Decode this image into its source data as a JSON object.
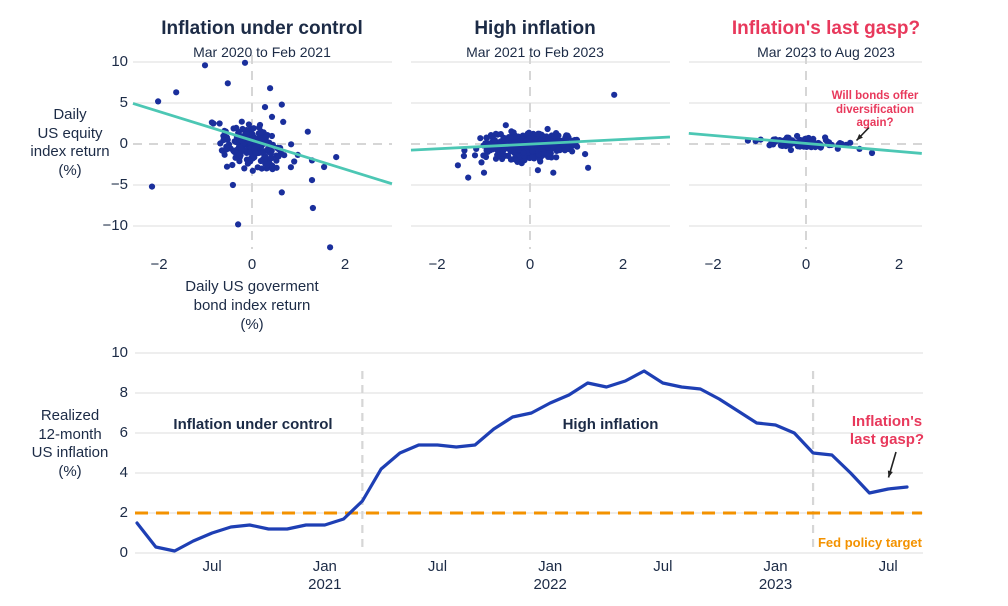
{
  "colors": {
    "background": "#ffffff",
    "navy": "#1c2b46",
    "red": "#e8395c",
    "dot_blue": "#1a2f9c",
    "line_blue": "#1e3fb4",
    "teal": "#4cc7b4",
    "orange": "#f39200",
    "grid": "#e9e9e9",
    "grid_dash": "#d6d6d6",
    "arrow": "#222222"
  },
  "chart_data": {
    "scatter_row": {
      "type": "scatter",
      "y_axis_label": "Daily\nUS equity\nindex return\n(%)",
      "x_axis_label": "Daily US goverment\nbond index return\n(%)",
      "y_tick_values": [
        10,
        5,
        0,
        -5,
        -10
      ],
      "y_tick_labels": [
        "10",
        "5",
        "0",
        "−5",
        "−10"
      ],
      "x_tick_values": [
        -2,
        0,
        2
      ],
      "x_tick_labels": [
        "−2",
        "0",
        "2"
      ],
      "ylim": [
        -12.8,
        10.5
      ],
      "panels": [
        {
          "title": "Inflation under control",
          "subtitle": "Mar 2020 to Feb 2021",
          "trend": {
            "x1": -2.56,
            "y1": 4.95,
            "x2": 3.01,
            "y2": -4.85
          },
          "cloud": {
            "seed": 41,
            "n": 190,
            "cx": 0.04,
            "cy": -0.25,
            "sx": 0.34,
            "sy": 1.3,
            "slope": -1.35,
            "clip_x": [
              -1.05,
              1.15
            ],
            "clip_y": [
              -4.3,
              4.2
            ]
          },
          "extra_points": [
            [
              -1.01,
              9.6
            ],
            [
              -0.15,
              9.9
            ],
            [
              -0.52,
              7.4
            ],
            [
              0.39,
              6.8
            ],
            [
              -1.63,
              6.3
            ],
            [
              -2.02,
              5.2
            ],
            [
              0.64,
              4.8
            ],
            [
              0.28,
              4.5
            ],
            [
              0.43,
              3.3
            ],
            [
              0.67,
              2.7
            ],
            [
              1.2,
              1.5
            ],
            [
              1.81,
              -1.6
            ],
            [
              1.55,
              -2.8
            ],
            [
              1.29,
              -2.0
            ],
            [
              1.29,
              -4.4
            ],
            [
              0.64,
              -5.9
            ],
            [
              -0.41,
              -5.0
            ],
            [
              -2.15,
              -5.2
            ],
            [
              1.31,
              -7.8
            ],
            [
              -0.3,
              -9.8
            ],
            [
              1.68,
              -12.6
            ]
          ]
        },
        {
          "title": "High inflation",
          "subtitle": "Mar 2021 to Feb 2023",
          "trend": {
            "x1": -2.56,
            "y1": -0.75,
            "x2": 3.01,
            "y2": 0.85
          },
          "cloud": {
            "seed": 87,
            "n": 460,
            "cx": -0.03,
            "cy": -0.12,
            "sx": 0.45,
            "sy": 0.78,
            "slope": 0.25,
            "clip_x": [
              -1.6,
              1.4
            ],
            "clip_y": [
              -2.7,
              2.3
            ]
          },
          "extra_points": [
            [
              1.81,
              6.0
            ],
            [
              -1.33,
              -4.1
            ],
            [
              -0.99,
              -3.5
            ],
            [
              0.17,
              -3.2
            ],
            [
              0.5,
              -3.5
            ],
            [
              -1.55,
              -2.6
            ],
            [
              1.25,
              -2.9
            ]
          ]
        },
        {
          "title": "Inflation's last gasp?",
          "subtitle": "Mar 2023 to Aug 2023",
          "trend": {
            "x1": -2.52,
            "y1": 1.3,
            "x2": 2.49,
            "y2": -1.15
          },
          "cloud": {
            "seed": 63,
            "n": 95,
            "cx": -0.1,
            "cy": 0.08,
            "sx": 0.4,
            "sy": 0.32,
            "slope": -0.3,
            "clip_x": [
              -1.3,
              1.05
            ],
            "clip_y": [
              -0.9,
              1.05
            ]
          },
          "extra_points": [
            [
              1.42,
              -1.1
            ],
            [
              1.15,
              -0.6
            ],
            [
              -1.25,
              0.4
            ],
            [
              0.95,
              0.15
            ]
          ]
        }
      ],
      "annotation": {
        "text": "Will bonds offer\ndiversification\nagain?"
      }
    },
    "inflation_chart": {
      "type": "line",
      "y_axis_label": "Realized\n12-month\nUS inflation\n(%)",
      "start_month": "Mar 2020",
      "end_month": "Aug 2023",
      "values": [
        1.5,
        0.3,
        0.1,
        0.6,
        1.0,
        1.3,
        1.4,
        1.2,
        1.2,
        1.4,
        1.4,
        1.7,
        2.6,
        4.2,
        5.0,
        5.4,
        5.4,
        5.3,
        5.4,
        6.2,
        6.8,
        7.0,
        7.5,
        7.9,
        8.5,
        8.3,
        8.6,
        9.1,
        8.5,
        8.3,
        8.2,
        7.7,
        7.1,
        6.5,
        6.4,
        6.0,
        5.0,
        4.9,
        4.0,
        3.0,
        3.2,
        3.3
      ],
      "ylim": [
        0,
        10
      ],
      "y_tick_values": [
        0,
        2,
        4,
        6,
        8,
        10
      ],
      "y_tick_labels": [
        "0",
        "2",
        "4",
        "6",
        "8",
        "10"
      ],
      "x_ticks": [
        {
          "label": "Jul",
          "month": 4
        },
        {
          "label": "Jan",
          "sub": "2021",
          "month": 10
        },
        {
          "label": "Jul",
          "month": 16
        },
        {
          "label": "Jan",
          "sub": "2022",
          "month": 22
        },
        {
          "label": "Jul",
          "month": 28
        },
        {
          "label": "Jan",
          "sub": "2023",
          "month": 34
        },
        {
          "label": "Jul",
          "month": 40
        }
      ],
      "target": {
        "value": 2,
        "label": "Fed policy target"
      },
      "separators_month": [
        12,
        36
      ],
      "phase_labels": {
        "phase1": "Inflation under control",
        "phase2": "High inflation",
        "phase3": "Inflation's\nlast gasp?"
      }
    }
  }
}
